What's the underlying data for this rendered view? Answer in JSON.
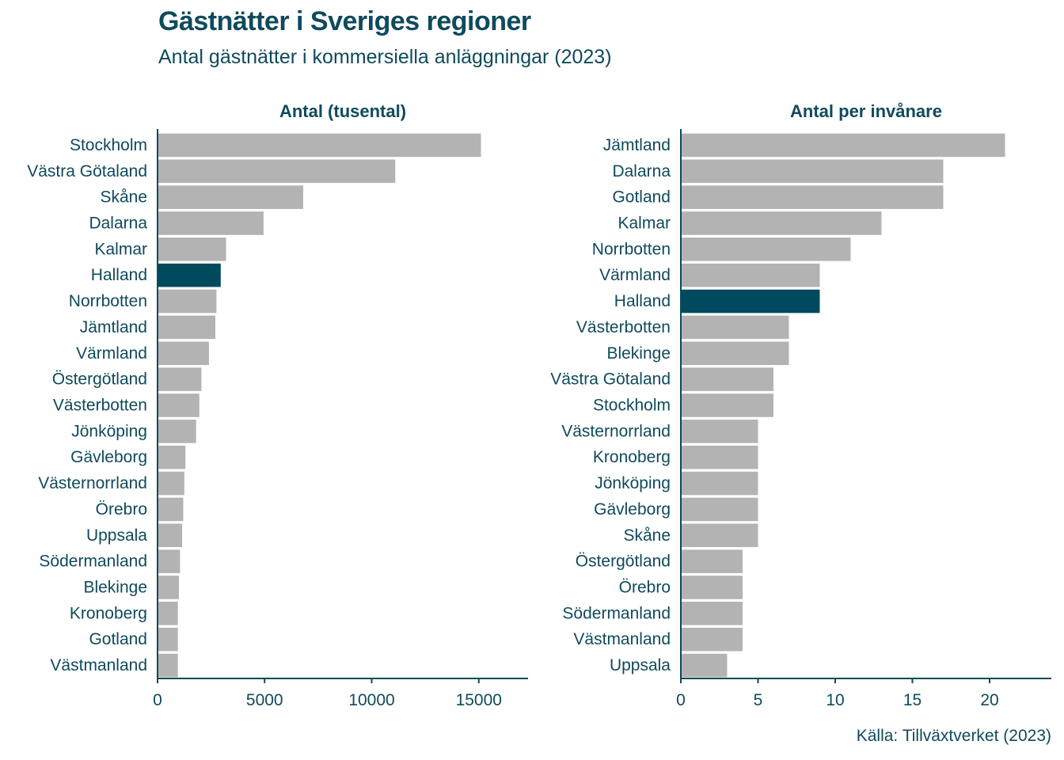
{
  "title": "Gästnätter i Sveriges regioner",
  "subtitle": "Antal gästnätter i kommersiella anläggningar (2023)",
  "source": "Källa: Tillväxtverket (2023)",
  "colors": {
    "text": "#0f4a5c",
    "bar": "#b3b3b3",
    "highlight": "#004a5e",
    "axis": "#0f4a5c"
  },
  "chart_data": [
    {
      "type": "bar",
      "orientation": "horizontal",
      "title": "Antal (tusental)",
      "categories": [
        "Stockholm",
        "Västra Götaland",
        "Skåne",
        "Dalarna",
        "Kalmar",
        "Halland",
        "Norrbotten",
        "Jämtland",
        "Värmland",
        "Östergötland",
        "Västerbotten",
        "Jönköping",
        "Gävleborg",
        "Västernorrland",
        "Örebro",
        "Uppsala",
        "Södermanland",
        "Blekinge",
        "Kronoberg",
        "Gotland",
        "Västmanland"
      ],
      "values": [
        15100,
        11100,
        6800,
        4950,
        3200,
        2950,
        2750,
        2700,
        2400,
        2050,
        1950,
        1800,
        1300,
        1250,
        1200,
        1150,
        1050,
        1000,
        950,
        950,
        950
      ],
      "highlight": "Halland",
      "xlim": [
        0,
        17300
      ],
      "xticks": [
        0,
        5000,
        10000,
        15000
      ],
      "grid": false
    },
    {
      "type": "bar",
      "orientation": "horizontal",
      "title": "Antal per invånare",
      "categories": [
        "Jämtland",
        "Dalarna",
        "Gotland",
        "Kalmar",
        "Norrbotten",
        "Värmland",
        "Halland",
        "Västerbotten",
        "Blekinge",
        "Västra Götaland",
        "Stockholm",
        "Västernorrland",
        "Kronoberg",
        "Jönköping",
        "Gävleborg",
        "Skåne",
        "Östergötland",
        "Örebro",
        "Södermanland",
        "Västmanland",
        "Uppsala"
      ],
      "values": [
        21,
        17,
        17,
        13,
        11,
        9,
        9,
        7,
        7,
        6,
        6,
        5,
        5,
        5,
        5,
        5,
        4,
        4,
        4,
        4,
        3
      ],
      "highlight": "Halland",
      "xlim": [
        0,
        24
      ],
      "xticks": [
        0,
        5,
        10,
        15,
        20
      ],
      "grid": false
    }
  ]
}
